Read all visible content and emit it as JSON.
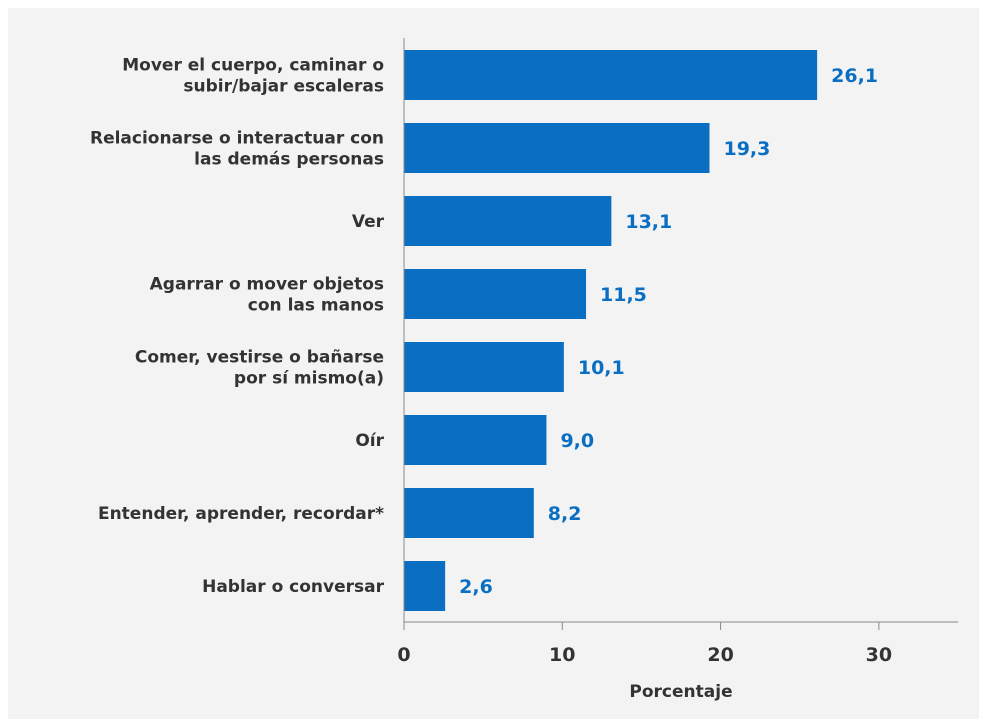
{
  "chart_data": {
    "type": "bar",
    "orientation": "horizontal",
    "categories": [
      [
        "Mover el cuerpo, caminar o",
        "subir/bajar escaleras"
      ],
      [
        "Relacionarse o interactuar con",
        "las demás personas"
      ],
      [
        "Ver"
      ],
      [
        "Agarrar o mover objetos",
        "con las manos"
      ],
      [
        "Comer, vestirse o bañarse",
        "por sí mismo(a)"
      ],
      [
        "Oír"
      ],
      [
        "Entender, aprender, recordar*"
      ],
      [
        "Hablar o conversar"
      ]
    ],
    "values": [
      26.1,
      19.3,
      13.1,
      11.5,
      10.1,
      9.0,
      8.2,
      2.6
    ],
    "value_labels": [
      "26,1",
      "19,3",
      "13,1",
      "11,5",
      "10,1",
      "9,0",
      "8,2",
      "2,6"
    ],
    "xlabel": "Porcentaje",
    "ylabel": "",
    "title": "",
    "xlim": [
      0,
      35
    ],
    "xticks": [
      0,
      10,
      20,
      30
    ],
    "xtick_labels": [
      "0",
      "10",
      "20",
      "30"
    ],
    "grid": false,
    "colors": {
      "bar": "#0a6fc2",
      "value_text": "#0a6fc2",
      "text": "#333333",
      "axis": "#888888",
      "background": "#f3f3f3"
    }
  }
}
